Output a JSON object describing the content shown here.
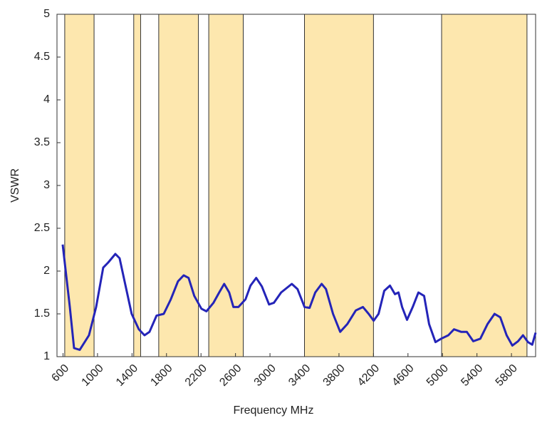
{
  "chart_data": {
    "type": "line",
    "xlabel": "Frequency MHz",
    "ylabel": "VSWR",
    "xlim": [
      530,
      6080
    ],
    "ylim": [
      1,
      5
    ],
    "xticks": [
      600,
      1000,
      1400,
      1800,
      2200,
      2600,
      3000,
      3400,
      3800,
      4200,
      4600,
      5000,
      5400,
      5800
    ],
    "yticks": [
      1,
      1.5,
      2,
      2.5,
      3,
      3.5,
      4,
      4.5,
      5
    ],
    "bands": [
      [
        620,
        960
      ],
      [
        1420,
        1500
      ],
      [
        1710,
        2170
      ],
      [
        2290,
        2690
      ],
      [
        3400,
        4200
      ],
      [
        4990,
        5980
      ]
    ],
    "band_color": "#fde7ae",
    "series": [
      {
        "color": "#2424b8",
        "x": [
          596,
          679,
          728,
          794,
          901,
          984,
          1066,
          1124,
          1207,
          1256,
          1314,
          1396,
          1479,
          1545,
          1603,
          1685,
          1768,
          1850,
          1933,
          1999,
          2056,
          2122,
          2205,
          2263,
          2345,
          2411,
          2469,
          2527,
          2576,
          2634,
          2716,
          2774,
          2840,
          2906,
          2989,
          3046,
          3129,
          3253,
          3319,
          3401,
          3459,
          3525,
          3599,
          3649,
          3731,
          3814,
          3896,
          3995,
          4078,
          4144,
          4202,
          4259,
          4325,
          4391,
          4449,
          4490,
          4532,
          4589,
          4655,
          4721,
          4787,
          4845,
          4919,
          4985,
          5068,
          5134,
          5216,
          5282,
          5357,
          5439,
          5522,
          5604,
          5670,
          5744,
          5810,
          5876,
          5934,
          5992,
          6041,
          6080
        ],
        "values": [
          2.31,
          1.58,
          1.1,
          1.08,
          1.25,
          1.58,
          2.04,
          2.1,
          2.2,
          2.15,
          1.88,
          1.5,
          1.32,
          1.25,
          1.29,
          1.48,
          1.5,
          1.67,
          1.88,
          1.95,
          1.92,
          1.71,
          1.56,
          1.53,
          1.63,
          1.75,
          1.85,
          1.75,
          1.58,
          1.58,
          1.67,
          1.83,
          1.92,
          1.82,
          1.61,
          1.63,
          1.75,
          1.85,
          1.79,
          1.58,
          1.57,
          1.75,
          1.85,
          1.79,
          1.5,
          1.29,
          1.38,
          1.54,
          1.58,
          1.5,
          1.42,
          1.5,
          1.77,
          1.83,
          1.73,
          1.75,
          1.58,
          1.43,
          1.58,
          1.75,
          1.71,
          1.38,
          1.17,
          1.21,
          1.25,
          1.32,
          1.29,
          1.29,
          1.18,
          1.21,
          1.38,
          1.5,
          1.46,
          1.25,
          1.13,
          1.18,
          1.25,
          1.17,
          1.14,
          1.28
        ]
      }
    ]
  }
}
